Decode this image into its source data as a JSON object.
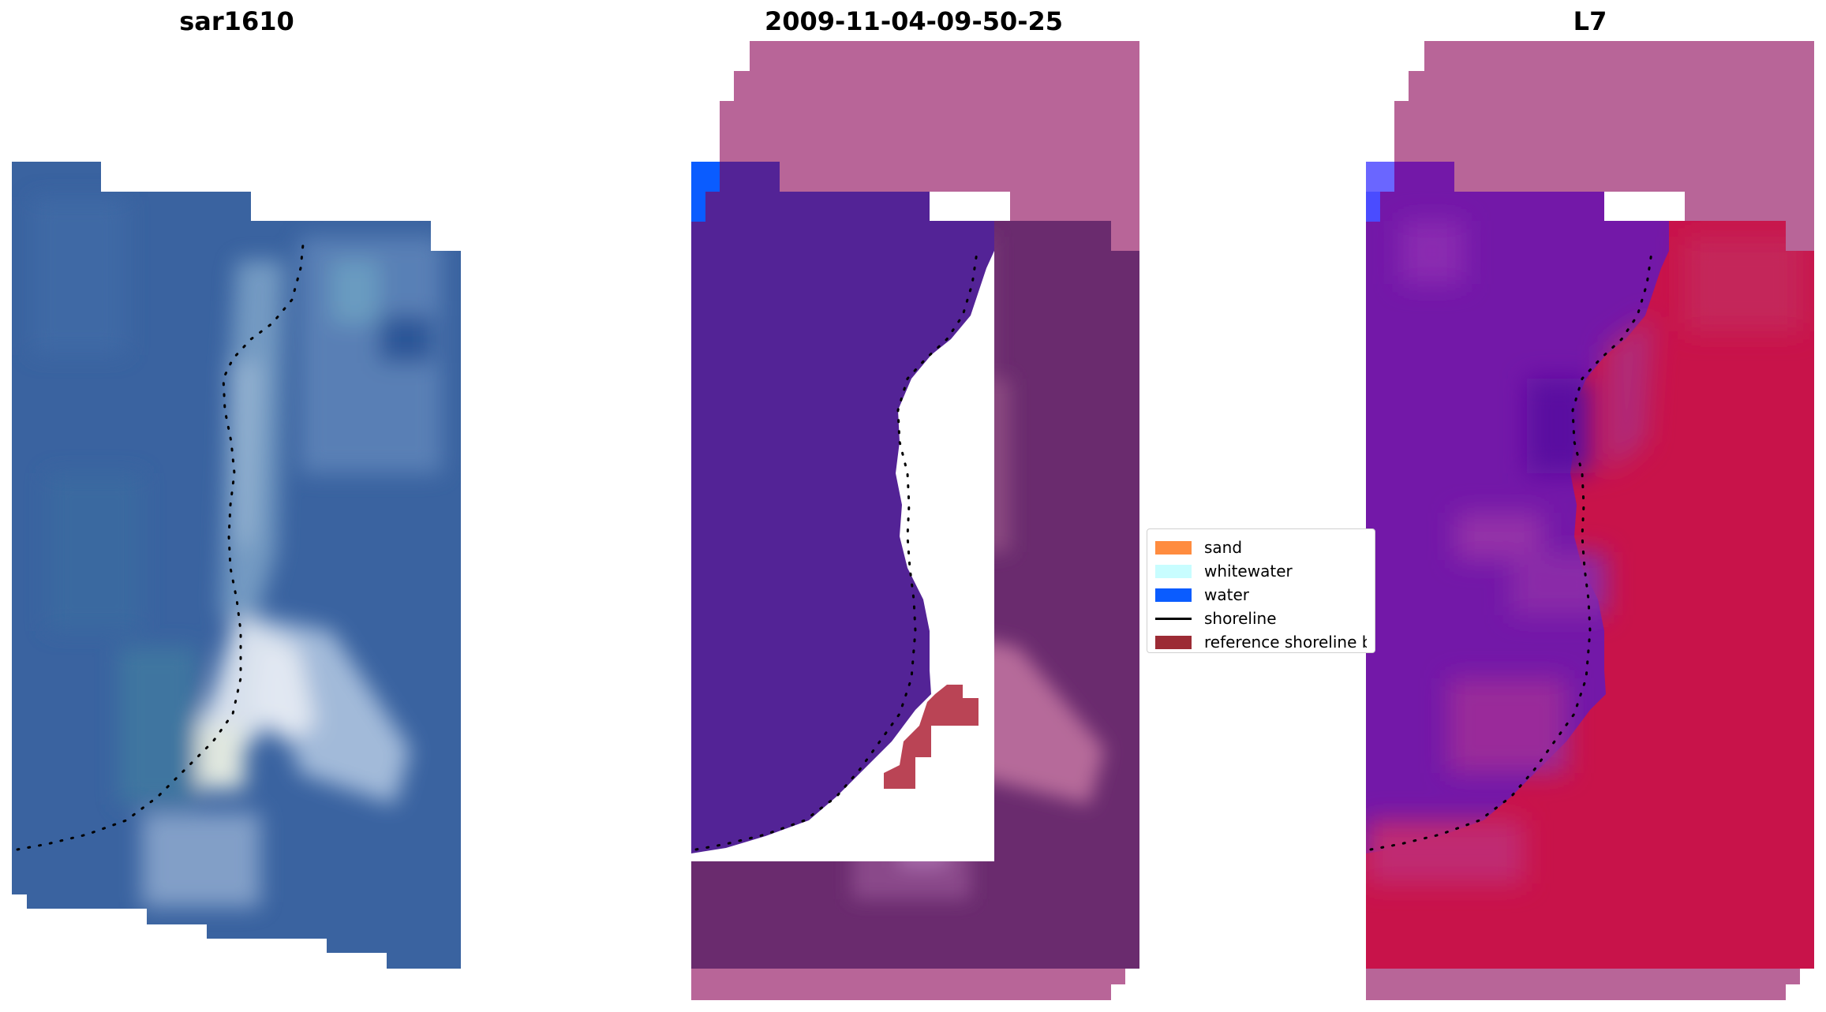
{
  "panels": [
    {
      "title": "sar1610"
    },
    {
      "title": "2009-11-04-09-50-25"
    },
    {
      "title": "L7"
    }
  ],
  "legend": {
    "items": [
      {
        "label": "sand",
        "color": "#ff8c3f",
        "kind": "patch"
      },
      {
        "label": "whitewater",
        "color": "#c8fdff",
        "kind": "patch"
      },
      {
        "label": "water",
        "color": "#0a5cff",
        "kind": "patch"
      },
      {
        "label": "shoreline",
        "color": "#000000",
        "kind": "line"
      },
      {
        "label": "reference shoreline b",
        "color": "#9c2b35",
        "kind": "patch"
      }
    ]
  },
  "colors": {
    "rgb_water": "#3a62a0",
    "rgb_surf": "#dfe8f2",
    "class_water": "#532396",
    "class_land": "#6a2b6e",
    "background_mask": "#b86598",
    "index_water": "#7318a8",
    "index_land": "#c8134a"
  }
}
